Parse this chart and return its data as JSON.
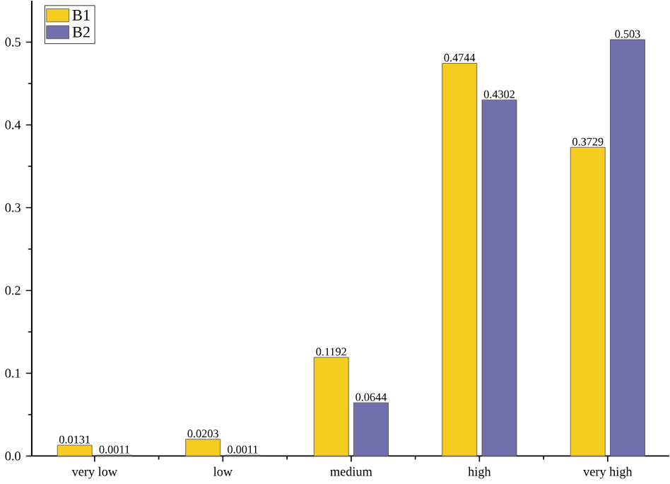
{
  "chart_data": {
    "type": "bar",
    "categories": [
      "very low",
      "low",
      "medium",
      "high",
      "very high"
    ],
    "series": [
      {
        "name": "B1",
        "color": "#f5cd1e",
        "values": [
          0.0131,
          0.0203,
          0.1192,
          0.4744,
          0.3729
        ]
      },
      {
        "name": "B2",
        "color": "#7070ac",
        "values": [
          0.0011,
          0.0011,
          0.0644,
          0.4302,
          0.503
        ]
      }
    ],
    "ylim": [
      0,
      0.55
    ],
    "yticks": [
      {
        "value": 0,
        "label": "0.0"
      },
      0.1,
      0.2,
      0.3,
      0.4,
      0.5
    ],
    "data_labels": true,
    "legend": "top left",
    "grid": false
  }
}
